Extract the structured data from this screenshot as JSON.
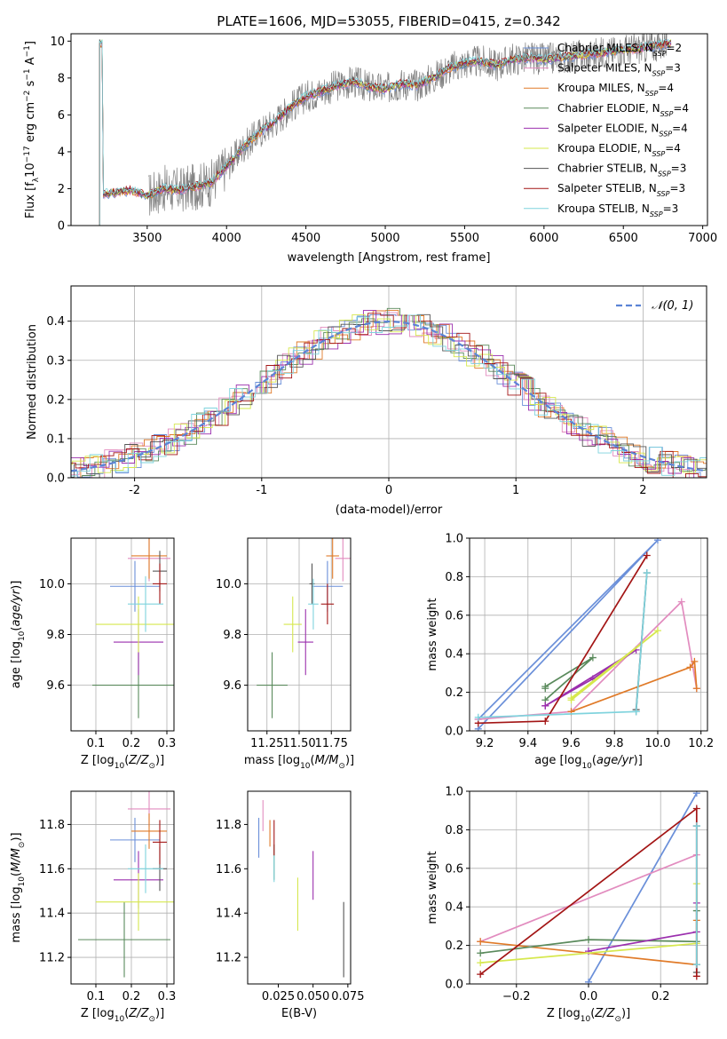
{
  "title": "PLATE=1606, MJD=53055, FIBERID=0415, z=0.342",
  "colors": {
    "Chabrier MILES": "#6a8fd9",
    "Salpeter MILES": "#e28cbf",
    "Kroupa MILES": "#e07a28",
    "Chabrier ELODIE": "#5a8a5c",
    "Salpeter ELODIE": "#9b2fae",
    "Kroupa ELODIE": "#d6e84e",
    "Chabrier STELIB": "#555555",
    "Salpeter STELIB": "#a31515",
    "Kroupa STELIB": "#7fd3dd",
    "data": "#808080",
    "normal": "#5b84d6"
  },
  "chart_data": [
    {
      "id": "spectrum",
      "type": "line",
      "title": "PLATE=1606, MJD=53055, FIBERID=0415, z=0.342",
      "xlabel": "wavelength [Angstrom, rest frame]",
      "ylabel": "Flux [fλ10⁻¹⁷ erg cm⁻² s⁻¹ A⁻¹]",
      "xlim": [
        3020,
        7030
      ],
      "ylim": [
        0,
        10.4
      ],
      "xticks": [
        3500,
        4000,
        4500,
        5000,
        5500,
        6000,
        6500,
        7000
      ],
      "yticks": [
        0,
        2,
        4,
        6,
        8,
        10
      ],
      "grid": false,
      "legend_position": "top-right",
      "legend": [
        {
          "name": "Chabrier MILES",
          "label": "Chabrier MILES, N",
          "sub": "SSP",
          "suffix": "=2"
        },
        {
          "name": "Salpeter MILES",
          "label": "Salpeter MILES, N",
          "sub": "SSP",
          "suffix": "=3"
        },
        {
          "name": "Kroupa MILES",
          "label": "Kroupa MILES, N",
          "sub": "SSP",
          "suffix": "=4"
        },
        {
          "name": "Chabrier ELODIE",
          "label": "Chabrier ELODIE, N",
          "sub": "SSP",
          "suffix": "=4"
        },
        {
          "name": "Salpeter ELODIE",
          "label": "Salpeter ELODIE, N",
          "sub": "SSP",
          "suffix": "=4"
        },
        {
          "name": "Kroupa ELODIE",
          "label": "Kroupa ELODIE, N",
          "sub": "SSP",
          "suffix": "=4"
        },
        {
          "name": "Chabrier STELIB",
          "label": "Chabrier STELIB, N",
          "sub": "SSP",
          "suffix": "=3"
        },
        {
          "name": "Salpeter STELIB",
          "label": "Salpeter STELIB, N",
          "sub": "SSP",
          "suffix": "=3"
        },
        {
          "name": "Kroupa STELIB",
          "label": "Kroupa STELIB, N",
          "sub": "SSP",
          "suffix": "=3"
        }
      ],
      "continuum": [
        [
          3220,
          1.7
        ],
        [
          3400,
          1.9
        ],
        [
          3500,
          1.6
        ],
        [
          3600,
          2.0
        ],
        [
          3700,
          1.9
        ],
        [
          3800,
          2.1
        ],
        [
          3900,
          2.3
        ],
        [
          4000,
          3.2
        ],
        [
          4100,
          4.2
        ],
        [
          4200,
          5.0
        ],
        [
          4300,
          5.6
        ],
        [
          4400,
          6.4
        ],
        [
          4500,
          7.0
        ],
        [
          4600,
          7.3
        ],
        [
          4700,
          7.6
        ],
        [
          4800,
          7.8
        ],
        [
          4900,
          7.5
        ],
        [
          5000,
          7.4
        ],
        [
          5100,
          7.7
        ],
        [
          5200,
          7.6
        ],
        [
          5300,
          8.0
        ],
        [
          5400,
          8.5
        ],
        [
          5500,
          8.8
        ],
        [
          5600,
          8.9
        ],
        [
          5700,
          8.7
        ],
        [
          5800,
          9.0
        ],
        [
          5900,
          9.1
        ],
        [
          6000,
          9.0
        ],
        [
          6200,
          9.2
        ],
        [
          6400,
          9.4
        ],
        [
          6600,
          9.6
        ],
        [
          6800,
          9.9
        ]
      ],
      "model_range": [
        3200,
        6800
      ],
      "data_range": [
        3510,
        6780
      ]
    },
    {
      "id": "residuals",
      "type": "line",
      "xlabel": "(data-model)/error",
      "ylabel": "Normed distribution",
      "xlim": [
        -2.5,
        2.5
      ],
      "ylim": [
        0,
        0.49
      ],
      "xticks": [
        -2,
        -1,
        0,
        1,
        2
      ],
      "yticks": [
        0.0,
        0.1,
        0.2,
        0.3,
        0.4
      ],
      "grid": true,
      "legend": [
        "𝒩(0, 1)"
      ],
      "bin_width": 0.1
    },
    {
      "id": "age-vs-Z",
      "type": "scatter",
      "xlabel": "Z [log10(Z/Z⊙)]",
      "ylabel": "age  [log10(age/yr)]",
      "xlim": [
        0.03,
        0.32
      ],
      "ylim": [
        9.42,
        10.18
      ],
      "xticks": [
        0.1,
        0.2,
        0.3
      ],
      "yticks": [
        9.6,
        9.8,
        10.0
      ],
      "grid": true,
      "points": [
        {
          "model": "Chabrier MILES",
          "x": 0.21,
          "y": 9.99,
          "xerr": 0.07,
          "yerr": 0.1
        },
        {
          "model": "Salpeter MILES",
          "x": 0.25,
          "y": 10.1,
          "xerr": 0.06,
          "yerr": 0.09
        },
        {
          "model": "Kroupa MILES",
          "x": 0.25,
          "y": 10.11,
          "xerr": 0.05,
          "yerr": 0.09
        },
        {
          "model": "Chabrier ELODIE",
          "x": 0.22,
          "y": 9.6,
          "xerr": 0.13,
          "yerr": 0.13
        },
        {
          "model": "Salpeter ELODIE",
          "x": 0.22,
          "y": 9.77,
          "xerr": 0.07,
          "yerr": 0.13
        },
        {
          "model": "Kroupa ELODIE",
          "x": 0.22,
          "y": 9.84,
          "xerr": 0.12,
          "yerr": 0.11
        },
        {
          "model": "Chabrier STELIB",
          "x": 0.28,
          "y": 10.05,
          "xerr": 0.02,
          "yerr": 0.08
        },
        {
          "model": "Salpeter STELIB",
          "x": 0.28,
          "y": 10.0,
          "xerr": 0.02,
          "yerr": 0.08
        },
        {
          "model": "Kroupa STELIB",
          "x": 0.24,
          "y": 9.92,
          "xerr": 0.05,
          "yerr": 0.11
        }
      ]
    },
    {
      "id": "age-vs-mass",
      "type": "scatter",
      "xlabel": "mass [log10(M/M⊙)]",
      "xlim": [
        11.1,
        11.9
      ],
      "ylim": [
        9.42,
        10.18
      ],
      "xticks": [
        11.25,
        11.5,
        11.75
      ],
      "yticks": [
        9.6,
        9.8,
        10.0
      ],
      "grid": true,
      "points": [
        {
          "model": "Chabrier MILES",
          "x": 11.72,
          "y": 9.99,
          "xerr": 0.12,
          "yerr": 0.1
        },
        {
          "model": "Salpeter MILES",
          "x": 11.84,
          "y": 10.1,
          "xerr": 0.06,
          "yerr": 0.09
        },
        {
          "model": "Kroupa MILES",
          "x": 11.76,
          "y": 10.11,
          "xerr": 0.05,
          "yerr": 0.09
        },
        {
          "model": "Chabrier ELODIE",
          "x": 11.29,
          "y": 9.6,
          "xerr": 0.12,
          "yerr": 0.13
        },
        {
          "model": "Salpeter ELODIE",
          "x": 11.55,
          "y": 9.77,
          "xerr": 0.06,
          "yerr": 0.13
        },
        {
          "model": "Kroupa ELODIE",
          "x": 11.45,
          "y": 9.84,
          "xerr": 0.07,
          "yerr": 0.11
        },
        {
          "model": "Chabrier STELIB",
          "x": 11.6,
          "y": 10.0,
          "xerr": 0.02,
          "yerr": 0.08
        },
        {
          "model": "Salpeter STELIB",
          "x": 11.72,
          "y": 9.92,
          "xerr": 0.05,
          "yerr": 0.08
        },
        {
          "model": "Kroupa STELIB",
          "x": 11.61,
          "y": 9.92,
          "xerr": 0.04,
          "yerr": 0.1
        }
      ]
    },
    {
      "id": "weight-vs-age",
      "type": "line",
      "xlabel": "age  [log10(age/yr)]",
      "ylabel": "mass weight",
      "xlim": [
        9.13,
        10.23
      ],
      "ylim": [
        0,
        1.0
      ],
      "xticks": [
        9.2,
        9.4,
        9.6,
        9.8,
        10.0,
        10.2
      ],
      "yticks": [
        0.0,
        0.2,
        0.4,
        0.6,
        0.8,
        1.0
      ],
      "grid": true,
      "series": [
        {
          "model": "Chabrier MILES",
          "x": [
            9.17,
            10.0,
            9.17
          ],
          "y": [
            0.01,
            0.99,
            0.06
          ]
        },
        {
          "model": "Salpeter MILES",
          "x": [
            9.17,
            9.6,
            10.11,
            10.18
          ],
          "y": [
            0.06,
            0.1,
            0.67,
            0.22
          ]
        },
        {
          "model": "Kroupa MILES",
          "x": [
            9.6,
            10.15,
            10.17,
            10.18
          ],
          "y": [
            0.1,
            0.33,
            0.36,
            0.22
          ]
        },
        {
          "model": "Chabrier ELODIE",
          "x": [
            9.48,
            9.7,
            9.48,
            9.48
          ],
          "y": [
            0.16,
            0.38,
            0.23,
            0.22
          ]
        },
        {
          "model": "Salpeter ELODIE",
          "x": [
            9.48,
            9.9,
            9.7,
            9.48
          ],
          "y": [
            0.13,
            0.42,
            0.27,
            0.13
          ]
        },
        {
          "model": "Kroupa ELODIE",
          "x": [
            9.6,
            10.0,
            9.6
          ],
          "y": [
            0.17,
            0.52,
            0.16
          ]
        },
        {
          "model": "Chabrier STELIB",
          "x": [
            9.9,
            9.95,
            9.9
          ],
          "y": [
            0.1,
            0.82,
            0.11
          ]
        },
        {
          "model": "Salpeter STELIB",
          "x": [
            9.17,
            9.48,
            9.95
          ],
          "y": [
            0.04,
            0.05,
            0.91
          ]
        },
        {
          "model": "Kroupa STELIB",
          "x": [
            9.17,
            9.9,
            9.95,
            9.9
          ],
          "y": [
            0.07,
            0.1,
            0.82,
            0.1
          ]
        }
      ]
    },
    {
      "id": "mass-vs-Z",
      "type": "scatter",
      "xlabel": "Z [log10(Z/Z⊙)]",
      "ylabel": "mass [log10(M/M⊙)]",
      "xlim": [
        0.03,
        0.32
      ],
      "ylim": [
        11.08,
        11.95
      ],
      "xticks": [
        0.1,
        0.2,
        0.3
      ],
      "yticks": [
        11.2,
        11.4,
        11.6,
        11.8
      ],
      "grid": true,
      "points": [
        {
          "model": "Chabrier MILES",
          "x": 0.21,
          "y": 11.73,
          "xerr": 0.07,
          "yerr": 0.1
        },
        {
          "model": "Salpeter MILES",
          "x": 0.25,
          "y": 11.87,
          "xerr": 0.06,
          "yerr": 0.08
        },
        {
          "model": "Kroupa MILES",
          "x": 0.25,
          "y": 11.77,
          "xerr": 0.05,
          "yerr": 0.08
        },
        {
          "model": "Chabrier ELODIE",
          "x": 0.18,
          "y": 11.28,
          "xerr": 0.13,
          "yerr": 0.17
        },
        {
          "model": "Salpeter ELODIE",
          "x": 0.22,
          "y": 11.55,
          "xerr": 0.07,
          "yerr": 0.13
        },
        {
          "model": "Kroupa ELODIE",
          "x": 0.22,
          "y": 11.45,
          "xerr": 0.12,
          "yerr": 0.13
        },
        {
          "model": "Chabrier STELIB",
          "x": 0.28,
          "y": 11.6,
          "xerr": 0.02,
          "yerr": 0.1
        },
        {
          "model": "Salpeter STELIB",
          "x": 0.28,
          "y": 11.72,
          "xerr": 0.02,
          "yerr": 0.1
        },
        {
          "model": "Kroupa STELIB",
          "x": 0.24,
          "y": 11.6,
          "xerr": 0.05,
          "yerr": 0.11
        }
      ]
    },
    {
      "id": "mass-vs-ebv",
      "type": "scatter",
      "xlabel": "E(B-V)",
      "xlim": [
        0.003,
        0.077
      ],
      "ylim": [
        11.08,
        11.95
      ],
      "xticks": [
        0.025,
        0.05,
        0.075
      ],
      "yticks": [
        11.2,
        11.4,
        11.6,
        11.8
      ],
      "grid": false,
      "points": [
        {
          "model": "Chabrier MILES",
          "x": 0.011,
          "y": 11.74,
          "xerr": 0,
          "yerr": 0.09
        },
        {
          "model": "Salpeter MILES",
          "x": 0.014,
          "y": 11.84,
          "xerr": 0,
          "yerr": 0.07
        },
        {
          "model": "Kroupa MILES",
          "x": 0.019,
          "y": 11.76,
          "xerr": 0,
          "yerr": 0.06
        },
        {
          "model": "Chabrier ELODIE",
          "x": 0.022,
          "y": 11.63,
          "xerr": 0,
          "yerr": 0.08
        },
        {
          "model": "Salpeter ELODIE",
          "x": 0.05,
          "y": 11.57,
          "xerr": 0,
          "yerr": 0.11
        },
        {
          "model": "Kroupa ELODIE",
          "x": 0.039,
          "y": 11.44,
          "xerr": 0,
          "yerr": 0.12
        },
        {
          "model": "Chabrier STELIB",
          "x": 0.072,
          "y": 11.28,
          "xerr": 0,
          "yerr": 0.17
        },
        {
          "model": "Salpeter STELIB",
          "x": 0.022,
          "y": 11.74,
          "xerr": 0,
          "yerr": 0.08
        },
        {
          "model": "Kroupa STELIB",
          "x": 0.022,
          "y": 11.6,
          "xerr": 0,
          "yerr": 0.06
        }
      ]
    },
    {
      "id": "weight-vs-Z",
      "type": "line",
      "xlabel": "Z [log10(Z/Z⊙)]",
      "ylabel": "mass weight",
      "xlim": [
        -0.33,
        0.33
      ],
      "ylim": [
        0,
        1.0
      ],
      "xticks": [
        -0.2,
        0.0,
        0.2
      ],
      "yticks": [
        0.0,
        0.2,
        0.4,
        0.6,
        0.8,
        1.0
      ],
      "grid": true,
      "series": [
        {
          "model": "Chabrier MILES",
          "x": [
            0.0,
            0.3
          ],
          "y": [
            0.01,
            0.99
          ]
        },
        {
          "model": "Salpeter MILES",
          "x": [
            -0.3,
            0.3
          ],
          "y": [
            0.22,
            0.67
          ]
        },
        {
          "model": "Kroupa MILES",
          "x": [
            -0.3,
            0.3,
            0.3
          ],
          "y": [
            0.22,
            0.1,
            0.33
          ]
        },
        {
          "model": "Chabrier ELODIE",
          "x": [
            -0.3,
            0.0,
            0.3,
            0.3
          ],
          "y": [
            0.16,
            0.23,
            0.22,
            0.38
          ]
        },
        {
          "model": "Salpeter ELODIE",
          "x": [
            0.0,
            0.3,
            0.3
          ],
          "y": [
            0.17,
            0.27,
            0.42
          ]
        },
        {
          "model": "Kroupa ELODIE",
          "x": [
            -0.3,
            0.3,
            0.3
          ],
          "y": [
            0.11,
            0.21,
            0.52
          ]
        },
        {
          "model": "Chabrier STELIB",
          "x": [
            0.3,
            0.3,
            0.3
          ],
          "y": [
            0.06,
            0.1,
            0.82
          ]
        },
        {
          "model": "Salpeter STELIB",
          "x": [
            -0.3,
            0.3,
            0.3
          ],
          "y": [
            0.05,
            0.91,
            0.04
          ]
        },
        {
          "model": "Kroupa STELIB",
          "x": [
            0.3,
            0.3
          ],
          "y": [
            0.1,
            0.82
          ]
        }
      ]
    }
  ]
}
